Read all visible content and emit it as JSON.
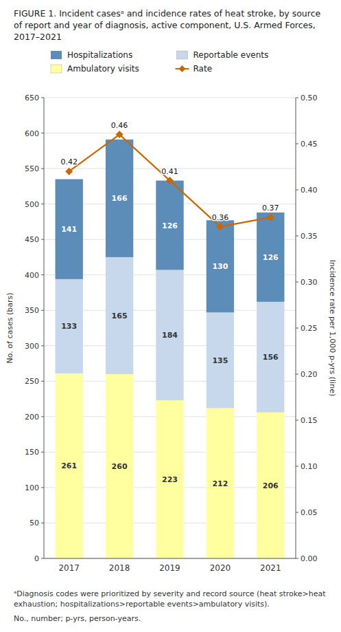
{
  "chart_data": {
    "type": "bar",
    "stacked": true,
    "title": "FIGURE 1. Incident casesᵃ and incidence rates of heat stroke, by source of report and year of diagnosis, active component, U.S. Armed Forces, 2017–2021",
    "categories": [
      "2017",
      "2018",
      "2019",
      "2020",
      "2021"
    ],
    "series": [
      {
        "name": "Ambulatory visits",
        "type": "bar",
        "color": "#FFFFA0",
        "values": [
          261,
          260,
          223,
          212,
          206
        ]
      },
      {
        "name": "Reportable events",
        "type": "bar",
        "color": "#C8D8EC",
        "values": [
          133,
          165,
          184,
          135,
          156
        ]
      },
      {
        "name": "Hospitalizations",
        "type": "bar",
        "color": "#5B8DB8",
        "values": [
          141,
          166,
          126,
          130,
          126
        ]
      },
      {
        "name": "Rate",
        "type": "line",
        "axis": "y2",
        "color": "#CC6600",
        "marker": "diamond",
        "values": [
          0.42,
          0.46,
          0.41,
          0.36,
          0.37
        ]
      }
    ],
    "ylabel": "No. of cases (bars)",
    "y2label": "Incidence rate per 1,000 p-yrs (line)",
    "ylim": [
      0,
      650
    ],
    "yticks": [
      0,
      50,
      100,
      150,
      200,
      250,
      300,
      350,
      400,
      450,
      500,
      550,
      600,
      650
    ],
    "y2lim": [
      0,
      0.5
    ],
    "y2ticks": [
      {
        "value": 0,
        "label": "0.00"
      },
      0.05,
      {
        "value": 0.1,
        "label": "0.10"
      },
      0.15,
      {
        "value": 0.2,
        "label": "0.20"
      },
      0.25,
      {
        "value": 0.3,
        "label": "0.30"
      },
      0.35,
      {
        "value": 0.4,
        "label": "0.40"
      },
      0.45,
      {
        "value": 0.5,
        "label": "0.50"
      }
    ],
    "grid": true,
    "legend": "top",
    "data_labels": true,
    "annotations": [
      "ᵃDiagnosis codes were prioritized by severity and record source (heat stroke>heat exhaustion; hospitalizations>reportable events>ambulatory visits).",
      "No., number; p-yrs, person-years."
    ]
  }
}
